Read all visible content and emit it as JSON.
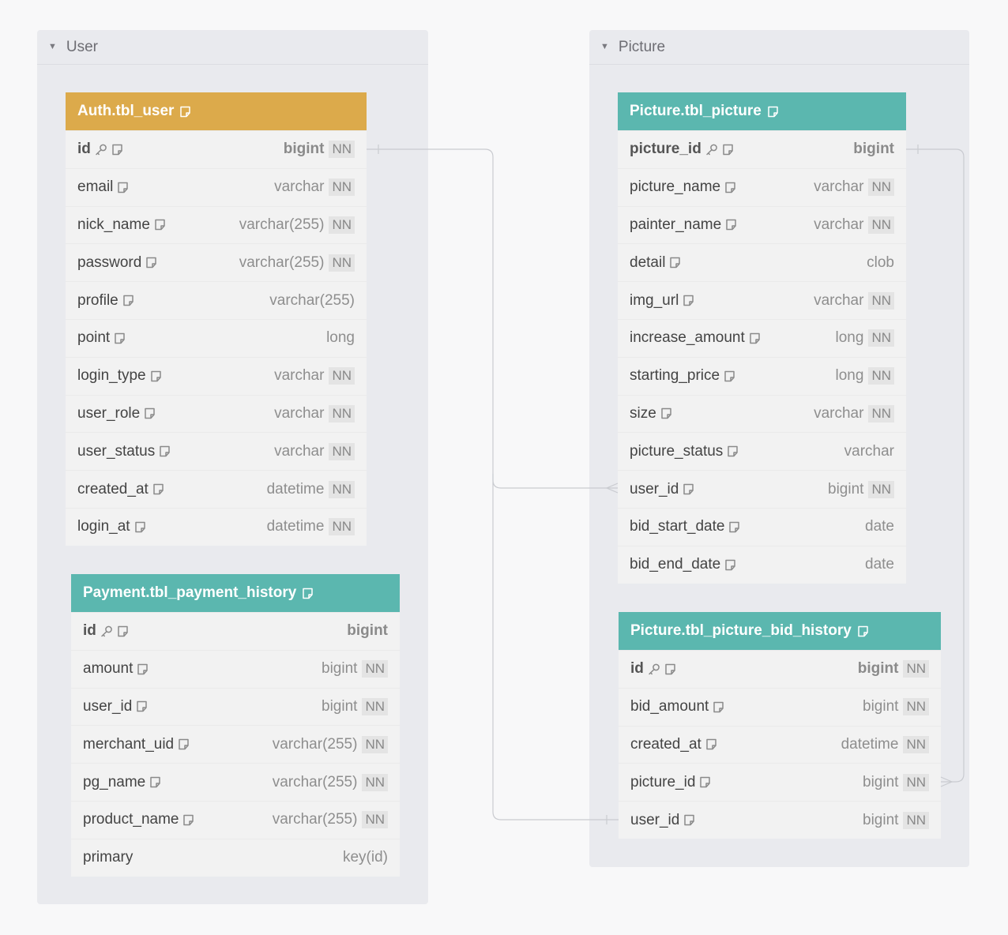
{
  "groups": {
    "user": {
      "label": "User"
    },
    "picture": {
      "label": "Picture"
    }
  },
  "colors": {
    "teal_header": "#5bb7af",
    "gold_header": "#dcaa4b",
    "group_bg": "#e9eaee",
    "edge": "#c9cbd0"
  },
  "tables": {
    "auth_user": {
      "name": "Auth.tbl_user",
      "fields": [
        {
          "name": "id",
          "type": "bigint",
          "nn": "NN",
          "pk": true
        },
        {
          "name": "email",
          "type": "varchar",
          "nn": "NN"
        },
        {
          "name": "nick_name",
          "type": "varchar(255)",
          "nn": "NN"
        },
        {
          "name": "password",
          "type": "varchar(255)",
          "nn": "NN"
        },
        {
          "name": "profile",
          "type": "varchar(255)",
          "nn": ""
        },
        {
          "name": "point",
          "type": "long",
          "nn": ""
        },
        {
          "name": "login_type",
          "type": "varchar",
          "nn": "NN"
        },
        {
          "name": "user_role",
          "type": "varchar",
          "nn": "NN"
        },
        {
          "name": "user_status",
          "type": "varchar",
          "nn": "NN"
        },
        {
          "name": "created_at",
          "type": "datetime",
          "nn": "NN"
        },
        {
          "name": "login_at",
          "type": "datetime",
          "nn": "NN"
        }
      ]
    },
    "payment_history": {
      "name": "Payment.tbl_payment_history",
      "fields": [
        {
          "name": "id",
          "type": "bigint",
          "nn": "",
          "pk": true
        },
        {
          "name": "amount",
          "type": "bigint",
          "nn": "NN"
        },
        {
          "name": "user_id",
          "type": "bigint",
          "nn": "NN"
        },
        {
          "name": "merchant_uid",
          "type": "varchar(255)",
          "nn": "NN"
        },
        {
          "name": "pg_name",
          "type": "varchar(255)",
          "nn": "NN"
        },
        {
          "name": "product_name",
          "type": "varchar(255)",
          "nn": "NN"
        },
        {
          "name": "primary",
          "type": "key(id)",
          "nn": "",
          "noicon": true
        }
      ]
    },
    "picture": {
      "name": "Picture.tbl_picture",
      "fields": [
        {
          "name": "picture_id",
          "type": "bigint",
          "nn": "",
          "pk": true
        },
        {
          "name": "picture_name",
          "type": "varchar",
          "nn": "NN"
        },
        {
          "name": "painter_name",
          "type": "varchar",
          "nn": "NN"
        },
        {
          "name": "detail",
          "type": "clob",
          "nn": ""
        },
        {
          "name": "img_url",
          "type": "varchar",
          "nn": "NN"
        },
        {
          "name": "increase_amount",
          "type": "long",
          "nn": "NN"
        },
        {
          "name": "starting_price",
          "type": "long",
          "nn": "NN"
        },
        {
          "name": "size",
          "type": "varchar",
          "nn": "NN"
        },
        {
          "name": "picture_status",
          "type": "varchar",
          "nn": ""
        },
        {
          "name": "user_id",
          "type": "bigint",
          "nn": "NN"
        },
        {
          "name": "bid_start_date",
          "type": "date",
          "nn": ""
        },
        {
          "name": "bid_end_date",
          "type": "date",
          "nn": ""
        }
      ]
    },
    "picture_bid_history": {
      "name": "Picture.tbl_picture_bid_history",
      "fields": [
        {
          "name": "id",
          "type": "bigint",
          "nn": "NN",
          "pk": true
        },
        {
          "name": "bid_amount",
          "type": "bigint",
          "nn": "NN"
        },
        {
          "name": "created_at",
          "type": "datetime",
          "nn": "NN"
        },
        {
          "name": "picture_id",
          "type": "bigint",
          "nn": "NN"
        },
        {
          "name": "user_id",
          "type": "bigint",
          "nn": "NN"
        }
      ]
    }
  },
  "relations": [
    {
      "from": "Auth.tbl_user.id",
      "to": "Picture.tbl_picture.user_id",
      "cardinality": "one-to-many"
    },
    {
      "from": "Auth.tbl_user.id",
      "to": "Picture.tbl_picture_bid_history.user_id",
      "cardinality": "one-to-one"
    },
    {
      "from": "Picture.tbl_picture.picture_id",
      "to": "Picture.tbl_picture_bid_history.picture_id",
      "cardinality": "one-to-many"
    }
  ]
}
